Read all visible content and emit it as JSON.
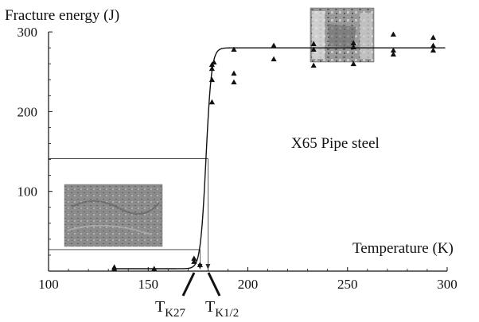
{
  "chart_data": {
    "type": "scatter",
    "title": "",
    "ylabel": "Fracture energy (J)",
    "xlabel": "Temperature (K)",
    "xlim": [
      100,
      300
    ],
    "ylim": [
      0,
      340
    ],
    "xticks": [
      100,
      150,
      200,
      250,
      300
    ],
    "yticks": [
      100,
      200,
      300
    ],
    "xtick_labels": [
      "100",
      "150",
      "200",
      "250",
      "300"
    ],
    "ytick_labels": [
      "100",
      "200",
      "300"
    ],
    "annotation": "X65 Pipe steel",
    "series": [
      {
        "marker": "triangle",
        "points": [
          {
            "x": 133,
            "y": 3
          },
          {
            "x": 133,
            "y": 5
          },
          {
            "x": 153,
            "y": 3
          },
          {
            "x": 173,
            "y": 12
          },
          {
            "x": 173,
            "y": 16
          },
          {
            "x": 176,
            "y": 8
          },
          {
            "x": 182,
            "y": 212
          },
          {
            "x": 182,
            "y": 240
          },
          {
            "x": 182,
            "y": 254
          },
          {
            "x": 182,
            "y": 259
          },
          {
            "x": 183,
            "y": 262
          },
          {
            "x": 193,
            "y": 278
          },
          {
            "x": 193,
            "y": 248
          },
          {
            "x": 193,
            "y": 237
          },
          {
            "x": 213,
            "y": 283
          },
          {
            "x": 213,
            "y": 266
          },
          {
            "x": 233,
            "y": 285
          },
          {
            "x": 233,
            "y": 278
          },
          {
            "x": 233,
            "y": 258
          },
          {
            "x": 253,
            "y": 286
          },
          {
            "x": 253,
            "y": 281
          },
          {
            "x": 253,
            "y": 260
          },
          {
            "x": 273,
            "y": 297
          },
          {
            "x": 273,
            "y": 277
          },
          {
            "x": 273,
            "y": 272
          },
          {
            "x": 293,
            "y": 293
          },
          {
            "x": 293,
            "y": 283
          },
          {
            "x": 293,
            "y": 277
          }
        ]
      }
    ],
    "fit_curve": {
      "lower": 3,
      "upper": 280,
      "t_mid": 179,
      "width": 1.4
    },
    "reference_lines": {
      "y_levels": [
        27,
        141
      ],
      "x_levels": [
        176,
        180
      ]
    },
    "markers": {
      "tk27_label": {
        "main": "T",
        "sub": "K27"
      },
      "tk12_label": {
        "main": "T",
        "sub": "K1/2"
      }
    },
    "inset_images": [
      {
        "name": "fracture-surface-brittle"
      },
      {
        "name": "fracture-surface-ductile"
      }
    ],
    "colors": {
      "axis": "#111111",
      "curve": "#111111",
      "marker": "#111111",
      "ref_line": "#333333"
    }
  }
}
